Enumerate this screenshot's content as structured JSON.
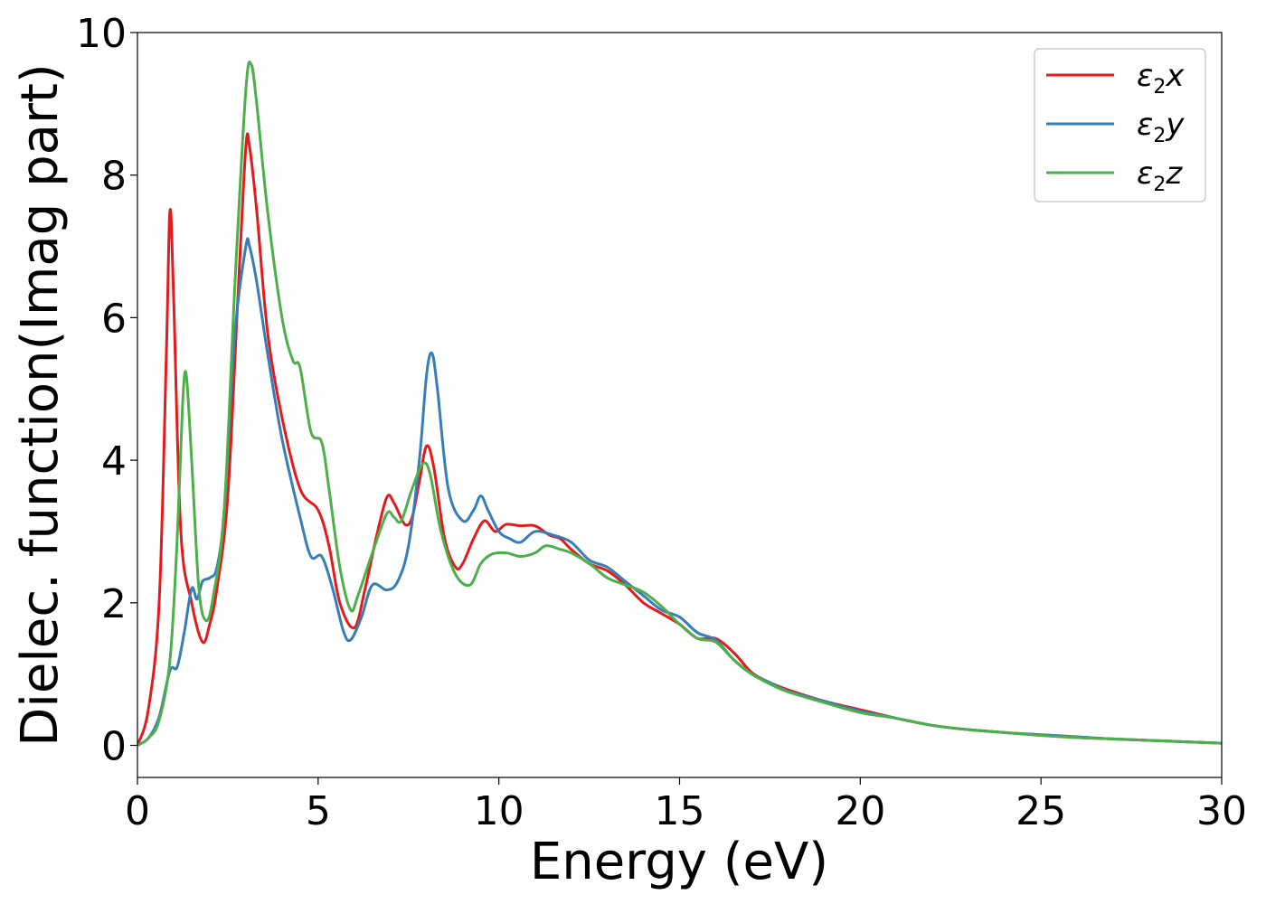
{
  "chart_data": {
    "type": "line",
    "title": "",
    "xlabel": "Energy (eV)",
    "ylabel": "Dielec. function(Imag part)",
    "xlim": [
      0,
      30
    ],
    "ylim": [
      -0.45,
      10
    ],
    "xticks": [
      0,
      5,
      10,
      15,
      20,
      25,
      30
    ],
    "xtick_labels": [
      "0",
      "5",
      "10",
      "15",
      "20",
      "25",
      "30"
    ],
    "yticks": [
      0,
      2,
      4,
      6,
      8,
      10
    ],
    "ytick_labels": [
      "0",
      "2",
      "4",
      "6",
      "8",
      "10"
    ],
    "grid": false,
    "legend_position": "top-right",
    "series": [
      {
        "name": "ε2x",
        "legend_base": "ε",
        "legend_sub": "2",
        "legend_tail": "x",
        "color": "#e41a1c",
        "x": [
          0,
          0.3,
          0.6,
          0.8,
          0.9,
          1.0,
          1.2,
          1.5,
          1.8,
          2.0,
          2.2,
          2.5,
          2.8,
          3.0,
          3.1,
          3.3,
          3.6,
          4.0,
          4.5,
          5.0,
          5.3,
          5.6,
          6.0,
          6.3,
          6.6,
          6.9,
          7.1,
          7.4,
          7.6,
          7.8,
          8.0,
          8.2,
          8.5,
          8.8,
          9.0,
          9.3,
          9.6,
          9.9,
          10.2,
          10.6,
          11.0,
          11.4,
          11.7,
          12.0,
          12.5,
          13.0,
          13.5,
          14.0,
          14.5,
          15.0,
          15.5,
          16.0,
          16.5,
          17.0,
          17.5,
          18.0,
          19.0,
          20.0,
          21.0,
          22.0,
          23.0,
          24.0,
          25.0,
          26.0,
          27.0,
          28.0,
          29.0,
          30.0
        ],
        "values": [
          0,
          0.5,
          2.0,
          5.5,
          7.5,
          6.3,
          3.0,
          2.0,
          1.45,
          1.7,
          2.2,
          3.5,
          6.5,
          8.4,
          8.4,
          7.5,
          5.8,
          4.6,
          3.6,
          3.3,
          2.8,
          2.0,
          1.65,
          2.2,
          2.9,
          3.48,
          3.4,
          3.1,
          3.2,
          3.7,
          4.2,
          3.9,
          2.9,
          2.5,
          2.55,
          2.9,
          3.15,
          3.0,
          3.1,
          3.08,
          3.08,
          2.95,
          2.9,
          2.75,
          2.55,
          2.45,
          2.25,
          2.0,
          1.85,
          1.7,
          1.5,
          1.5,
          1.3,
          1.02,
          0.88,
          0.78,
          0.62,
          0.5,
          0.38,
          0.28,
          0.22,
          0.18,
          0.14,
          0.11,
          0.09,
          0.07,
          0.05,
          0.03
        ]
      },
      {
        "name": "ε2y",
        "legend_base": "ε",
        "legend_sub": "2",
        "legend_tail": "y",
        "color": "#377eb8",
        "x": [
          0,
          0.3,
          0.6,
          0.9,
          1.1,
          1.3,
          1.5,
          1.65,
          1.8,
          2.0,
          2.2,
          2.4,
          2.7,
          3.0,
          3.1,
          3.3,
          3.6,
          4.0,
          4.5,
          4.8,
          5.1,
          5.4,
          5.7,
          5.9,
          6.2,
          6.5,
          6.9,
          7.2,
          7.5,
          7.8,
          8.0,
          8.15,
          8.3,
          8.6,
          9.0,
          9.3,
          9.5,
          9.7,
          10.0,
          10.3,
          10.6,
          11.0,
          11.5,
          12.0,
          12.5,
          13.0,
          13.5,
          14.0,
          14.5,
          15.0,
          15.5,
          16.0,
          16.5,
          17.0,
          17.5,
          18.0,
          19.0,
          20.0,
          21.0,
          22.0,
          23.0,
          24.0,
          25.0,
          26.0,
          27.0,
          28.0,
          29.0,
          30.0
        ],
        "values": [
          0,
          0.1,
          0.4,
          1.05,
          1.1,
          1.6,
          2.2,
          2.05,
          2.3,
          2.35,
          2.5,
          3.3,
          5.8,
          7.0,
          7.0,
          6.5,
          5.5,
          4.3,
          3.2,
          2.65,
          2.65,
          2.2,
          1.6,
          1.48,
          1.8,
          2.25,
          2.18,
          2.3,
          2.8,
          4.0,
          5.2,
          5.5,
          5.0,
          3.6,
          3.15,
          3.3,
          3.5,
          3.3,
          3.0,
          2.9,
          2.85,
          3.0,
          2.95,
          2.85,
          2.6,
          2.5,
          2.3,
          2.1,
          1.9,
          1.8,
          1.58,
          1.48,
          1.2,
          1.0,
          0.88,
          0.76,
          0.62,
          0.48,
          0.38,
          0.28,
          0.22,
          0.18,
          0.15,
          0.12,
          0.09,
          0.07,
          0.05,
          0.03
        ]
      },
      {
        "name": "ε2z",
        "legend_base": "ε",
        "legend_sub": "2",
        "legend_tail": "z",
        "color": "#4daf4a",
        "x": [
          0,
          0.3,
          0.6,
          0.9,
          1.1,
          1.25,
          1.35,
          1.5,
          1.7,
          1.9,
          2.1,
          2.4,
          2.7,
          3.0,
          3.15,
          3.3,
          3.6,
          4.0,
          4.3,
          4.5,
          4.8,
          5.1,
          5.3,
          5.6,
          5.9,
          6.1,
          6.5,
          6.9,
          7.1,
          7.3,
          7.6,
          7.9,
          8.1,
          8.4,
          8.8,
          9.2,
          9.5,
          9.8,
          10.2,
          10.6,
          11.0,
          11.3,
          11.7,
          12.0,
          12.5,
          13.0,
          13.5,
          14.0,
          14.5,
          15.0,
          15.5,
          16.0,
          16.5,
          17.0,
          17.5,
          18.0,
          19.0,
          20.0,
          21.0,
          22.0,
          23.0,
          24.0,
          25.0,
          26.0,
          27.0,
          28.0,
          29.0,
          30.0
        ],
        "values": [
          0,
          0.1,
          0.35,
          1.2,
          2.9,
          4.8,
          5.2,
          4.0,
          2.2,
          1.75,
          2.1,
          3.3,
          6.5,
          9.2,
          9.55,
          9.0,
          7.5,
          6.0,
          5.4,
          5.3,
          4.4,
          4.25,
          3.6,
          2.5,
          1.9,
          2.1,
          2.7,
          3.25,
          3.2,
          3.15,
          3.6,
          3.95,
          3.8,
          3.0,
          2.4,
          2.25,
          2.55,
          2.68,
          2.7,
          2.65,
          2.7,
          2.8,
          2.75,
          2.7,
          2.55,
          2.35,
          2.25,
          2.15,
          1.95,
          1.7,
          1.5,
          1.45,
          1.2,
          1.0,
          0.86,
          0.75,
          0.6,
          0.46,
          0.38,
          0.28,
          0.22,
          0.18,
          0.14,
          0.11,
          0.09,
          0.07,
          0.05,
          0.03
        ]
      }
    ]
  }
}
